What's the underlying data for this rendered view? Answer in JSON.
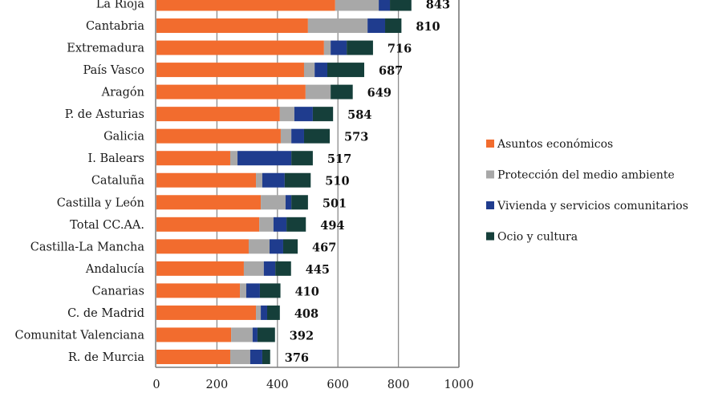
{
  "chart_data": {
    "type": "bar",
    "orientation": "horizontal",
    "stacked": true,
    "title": "",
    "xlabel": "",
    "ylabel": "",
    "xlim": [
      0,
      1000
    ],
    "x_ticks": [
      0,
      200,
      400,
      600,
      800,
      1000
    ],
    "x_tick_labels": [
      "0",
      "200",
      "400",
      "600",
      "800",
      "1000"
    ],
    "grid": "vertical",
    "legend_position": "right",
    "categories": [
      "La Rioja",
      "Cantabria",
      "Extremadura",
      "País Vasco",
      "Aragón",
      "P. de Asturias",
      "Galicia",
      "I. Balears",
      "Cataluña",
      "Castilla y León",
      "Total CC.AA.",
      "Castilla-La Mancha",
      "Andalucía",
      "Canarias",
      "C. de Madrid",
      "Comunitat Valenciana",
      "R. de Murcia"
    ],
    "totals": [
      843,
      810,
      716,
      687,
      649,
      584,
      573,
      517,
      510,
      501,
      494,
      467,
      445,
      410,
      408,
      392,
      376
    ],
    "series": [
      {
        "name": "Asuntos económicos",
        "color": "#F26C2E",
        "values": [
          591,
          501,
          554,
          488,
          493,
          408,
          411,
          244,
          329,
          345,
          340,
          305,
          289,
          276,
          329,
          247,
          244
        ]
      },
      {
        "name": "Protección del medio ambiente",
        "color": "#A8A8A8",
        "values": [
          144,
          197,
          22,
          35,
          83,
          48,
          35,
          24,
          21,
          82,
          47,
          69,
          66,
          21,
          16,
          71,
          66
        ]
      },
      {
        "name": "Vivienda y servicios comunitarios",
        "color": "#1F3C8E",
        "values": [
          37,
          58,
          53,
          42,
          0,
          61,
          42,
          178,
          74,
          19,
          43,
          45,
          38,
          45,
          21,
          16,
          40
        ]
      },
      {
        "name": "Ocio y  cultura",
        "color": "#153F3A",
        "values": [
          71,
          54,
          87,
          122,
          73,
          67,
          85,
          71,
          86,
          55,
          64,
          48,
          52,
          68,
          42,
          58,
          26
        ]
      }
    ]
  }
}
